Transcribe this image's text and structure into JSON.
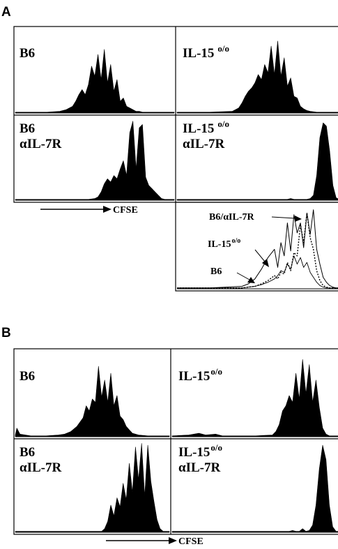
{
  "figure": {
    "panels": [
      {
        "letter": "A",
        "xlabel": "CFSE"
      },
      {
        "letter": "B",
        "xlabel": "CFSE"
      }
    ]
  },
  "chart_data": [
    {
      "type": "area",
      "panel": "A",
      "title": "B6",
      "subtitle": "",
      "xlabel": "",
      "ylabel": "",
      "xlim": [
        0,
        100
      ],
      "ylim": [
        0,
        100
      ],
      "x": [
        0,
        10,
        20,
        28,
        32,
        36,
        38,
        40,
        42,
        44,
        46,
        48,
        50,
        52,
        54,
        56,
        58,
        60,
        62,
        64,
        66,
        68,
        70,
        72,
        74,
        76,
        78,
        80,
        82,
        84,
        86,
        88,
        92,
        100
      ],
      "series": [
        {
          "name": "",
          "values": [
            1,
            1,
            1,
            2,
            4,
            8,
            14,
            22,
            28,
            22,
            34,
            56,
            44,
            70,
            40,
            76,
            36,
            58,
            26,
            40,
            14,
            18,
            8,
            6,
            4,
            2,
            2,
            1,
            1,
            1,
            1,
            1,
            1,
            1
          ]
        }
      ]
    },
    {
      "type": "area",
      "panel": "A",
      "title": "IL-15",
      "subtitle": "",
      "superscript": "o/o",
      "xlabel": "",
      "ylabel": "",
      "xlim": [
        0,
        100
      ],
      "ylim": [
        0,
        100
      ],
      "x": [
        0,
        20,
        34,
        38,
        40,
        42,
        44,
        46,
        48,
        50,
        52,
        54,
        56,
        58,
        60,
        62,
        64,
        66,
        68,
        70,
        72,
        74,
        76,
        78,
        80,
        82,
        86,
        92,
        100
      ],
      "series": [
        {
          "name": "",
          "values": [
            1,
            1,
            2,
            6,
            12,
            20,
            26,
            30,
            36,
            46,
            40,
            58,
            48,
            80,
            46,
            86,
            44,
            66,
            32,
            42,
            20,
            18,
            8,
            5,
            3,
            2,
            1,
            1,
            1
          ]
        }
      ]
    },
    {
      "type": "area",
      "panel": "A",
      "title": "B6",
      "subtitle": "αIL-7R",
      "xlabel": "",
      "ylabel": "",
      "xlim": [
        0,
        100
      ],
      "ylim": [
        0,
        100
      ],
      "x": [
        0,
        30,
        46,
        50,
        52,
        54,
        56,
        58,
        60,
        62,
        64,
        66,
        68,
        70,
        72,
        74,
        76,
        78,
        80,
        82,
        84,
        86,
        88,
        90,
        92,
        94,
        100
      ],
      "series": [
        {
          "name": "",
          "values": [
            1,
            1,
            1,
            2,
            4,
            10,
            20,
            26,
            22,
            30,
            26,
            38,
            48,
            30,
            82,
            96,
            38,
            88,
            92,
            28,
            18,
            14,
            10,
            6,
            2,
            1,
            1
          ]
        }
      ]
    },
    {
      "type": "area",
      "panel": "A",
      "title": "IL-15",
      "subtitle": "αIL-7R",
      "superscript": "o/o",
      "xlabel": "",
      "ylabel": "",
      "xlim": [
        0,
        100
      ],
      "ylim": [
        0,
        100
      ],
      "x": [
        0,
        30,
        50,
        60,
        68,
        70,
        72,
        76,
        80,
        82,
        84,
        86,
        88,
        90,
        92,
        94,
        96,
        98,
        100
      ],
      "series": [
        {
          "name": "",
          "values": [
            1,
            1,
            1,
            1,
            1,
            2,
            1,
            1,
            1,
            2,
            6,
            30,
            76,
            94,
            90,
            60,
            18,
            3,
            1
          ]
        }
      ]
    },
    {
      "type": "line",
      "panel": "A",
      "title": "",
      "subtitle": "",
      "xlabel": "",
      "ylabel": "",
      "xlim": [
        0,
        100
      ],
      "ylim": [
        0,
        100
      ],
      "annotations": [
        "B6/αIL-7R",
        "IL-15",
        "B6"
      ],
      "annotation_superscript": "o/o",
      "x": [
        0,
        10,
        20,
        30,
        40,
        44,
        48,
        52,
        56,
        60,
        62,
        64,
        66,
        68,
        70,
        72,
        74,
        76,
        78,
        80,
        82,
        84,
        86,
        88,
        90,
        92,
        94,
        96,
        98,
        100
      ],
      "series": [
        {
          "name": "",
          "style": "solid",
          "values": [
            1,
            1,
            1,
            2,
            3,
            6,
            12,
            24,
            38,
            48,
            26,
            56,
            40,
            80,
            46,
            90,
            68,
            80,
            50,
            92,
            66,
            96,
            48,
            30,
            14,
            8,
            4,
            2,
            1,
            1
          ]
        },
        {
          "name": "",
          "style": "dashed",
          "values": [
            1,
            1,
            1,
            1,
            1,
            2,
            3,
            6,
            10,
            16,
            12,
            20,
            18,
            32,
            22,
            44,
            40,
            78,
            56,
            92,
            62,
            48,
            22,
            10,
            4,
            2,
            1,
            1,
            1,
            1
          ]
        },
        {
          "name": "",
          "style": "solid-thin",
          "values": [
            1,
            1,
            1,
            1,
            1,
            2,
            3,
            5,
            8,
            12,
            16,
            22,
            20,
            30,
            24,
            40,
            30,
            38,
            26,
            32,
            20,
            14,
            8,
            4,
            2,
            1,
            1,
            1,
            1,
            1
          ]
        }
      ]
    },
    {
      "type": "area",
      "panel": "B",
      "title": "B6",
      "subtitle": "",
      "xlabel": "",
      "ylabel": "",
      "xlim": [
        0,
        100
      ],
      "ylim": [
        0,
        100
      ],
      "x": [
        0,
        1,
        3,
        10,
        20,
        28,
        32,
        36,
        40,
        44,
        46,
        48,
        50,
        52,
        54,
        56,
        58,
        60,
        62,
        64,
        66,
        68,
        70,
        72,
        74,
        76,
        80,
        86,
        92,
        100
      ],
      "series": [
        {
          "name": "",
          "values": [
            2,
            10,
            3,
            1,
            1,
            2,
            3,
            6,
            12,
            22,
            36,
            30,
            44,
            40,
            82,
            46,
            66,
            40,
            74,
            36,
            48,
            24,
            20,
            12,
            8,
            4,
            2,
            1,
            1,
            1
          ]
        }
      ]
    },
    {
      "type": "area",
      "panel": "B",
      "title": "IL-15",
      "subtitle": "",
      "superscript": "o/o",
      "xlabel": "",
      "ylabel": "",
      "xlim": [
        0,
        100
      ],
      "ylim": [
        0,
        100
      ],
      "x": [
        0,
        10,
        16,
        20,
        26,
        30,
        40,
        50,
        60,
        62,
        64,
        66,
        68,
        70,
        72,
        74,
        76,
        78,
        80,
        82,
        84,
        86,
        88,
        90,
        92,
        94,
        96,
        100
      ],
      "series": [
        {
          "name": "",
          "values": [
            1,
            2,
            4,
            2,
            3,
            1,
            1,
            1,
            2,
            6,
            14,
            30,
            36,
            48,
            40,
            74,
            44,
            90,
            50,
            84,
            40,
            66,
            34,
            10,
            3,
            1,
            1,
            1
          ]
        }
      ]
    },
    {
      "type": "area",
      "panel": "B",
      "title": "B6",
      "subtitle": "αIL-7R",
      "xlabel": "",
      "ylabel": "",
      "xlim": [
        0,
        100
      ],
      "ylim": [
        0,
        100
      ],
      "x": [
        0,
        40,
        56,
        58,
        60,
        62,
        64,
        66,
        68,
        70,
        72,
        74,
        76,
        78,
        80,
        82,
        84,
        86,
        88,
        90,
        92,
        94,
        96,
        98,
        100
      ],
      "series": [
        {
          "name": "",
          "values": [
            1,
            1,
            1,
            4,
            12,
            30,
            18,
            38,
            28,
            54,
            36,
            76,
            44,
            94,
            58,
            98,
            40,
            96,
            56,
            34,
            14,
            4,
            1,
            1,
            1
          ]
        }
      ]
    },
    {
      "type": "area",
      "panel": "B",
      "title": "IL-15",
      "subtitle": "αIL-7R",
      "superscript": "o/o",
      "xlabel": "",
      "ylabel": "",
      "xlim": [
        0,
        100
      ],
      "ylim": [
        0,
        100
      ],
      "x": [
        0,
        60,
        70,
        72,
        74,
        76,
        78,
        80,
        82,
        84,
        86,
        88,
        90,
        92,
        94,
        96,
        98,
        100
      ],
      "series": [
        {
          "name": "",
          "values": [
            1,
            1,
            1,
            2,
            1,
            1,
            4,
            1,
            2,
            8,
            30,
            70,
            96,
            80,
            30,
            6,
            1,
            1
          ]
        }
      ]
    }
  ]
}
